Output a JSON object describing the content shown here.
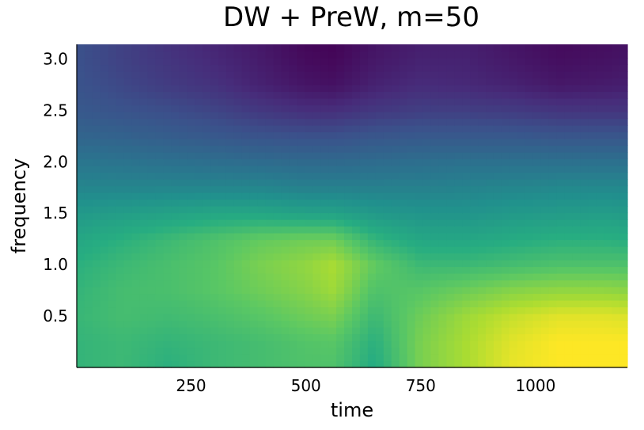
{
  "chart_data": {
    "type": "heatmap",
    "title": "DW + PreW, m=50",
    "xlabel": "time",
    "ylabel": "frequency",
    "xlim": [
      1,
      1200
    ],
    "ylim": [
      0,
      3.1416
    ],
    "xticks": [
      250,
      500,
      750,
      1000
    ],
    "xtick_labels": [
      "250",
      "500",
      "750",
      "1000"
    ],
    "yticks": [
      0.5,
      1.0,
      1.5,
      2.0,
      2.5,
      3.0
    ],
    "ytick_labels": [
      "0.5",
      "1.0",
      "1.5",
      "2.0",
      "2.5",
      "3.0"
    ],
    "colormap": "viridis",
    "colorbar": false,
    "grid": false,
    "x": [
      1,
      100,
      200,
      300,
      400,
      500,
      560,
      650,
      750,
      850,
      950,
      1050,
      1150,
      1200
    ],
    "y": [
      0.0,
      0.25,
      0.5,
      0.75,
      1.0,
      1.25,
      1.5,
      1.75,
      2.0,
      2.25,
      2.5,
      2.75,
      3.0,
      3.1416
    ],
    "z": [
      [
        0.66,
        0.68,
        0.64,
        0.68,
        0.7,
        0.72,
        0.72,
        0.62,
        0.8,
        0.88,
        0.97,
        1.0,
        1.0,
        1.0
      ],
      [
        0.66,
        0.68,
        0.66,
        0.68,
        0.7,
        0.73,
        0.74,
        0.64,
        0.8,
        0.88,
        0.96,
        1.0,
        1.0,
        1.0
      ],
      [
        0.67,
        0.7,
        0.69,
        0.71,
        0.74,
        0.78,
        0.8,
        0.68,
        0.78,
        0.86,
        0.92,
        0.96,
        0.96,
        0.95
      ],
      [
        0.66,
        0.7,
        0.71,
        0.74,
        0.78,
        0.82,
        0.86,
        0.72,
        0.74,
        0.78,
        0.82,
        0.84,
        0.84,
        0.83
      ],
      [
        0.64,
        0.68,
        0.71,
        0.74,
        0.8,
        0.84,
        0.88,
        0.76,
        0.68,
        0.68,
        0.7,
        0.72,
        0.72,
        0.72
      ],
      [
        0.6,
        0.64,
        0.68,
        0.72,
        0.76,
        0.78,
        0.78,
        0.66,
        0.6,
        0.6,
        0.62,
        0.64,
        0.64,
        0.63
      ],
      [
        0.54,
        0.56,
        0.58,
        0.6,
        0.6,
        0.58,
        0.58,
        0.54,
        0.52,
        0.52,
        0.54,
        0.55,
        0.56,
        0.55
      ],
      [
        0.46,
        0.46,
        0.46,
        0.46,
        0.46,
        0.44,
        0.44,
        0.44,
        0.44,
        0.45,
        0.46,
        0.47,
        0.47,
        0.47
      ],
      [
        0.4,
        0.39,
        0.38,
        0.37,
        0.36,
        0.35,
        0.35,
        0.36,
        0.37,
        0.38,
        0.38,
        0.38,
        0.38,
        0.38
      ],
      [
        0.33,
        0.32,
        0.3,
        0.28,
        0.26,
        0.25,
        0.25,
        0.27,
        0.28,
        0.28,
        0.28,
        0.27,
        0.27,
        0.27
      ],
      [
        0.28,
        0.26,
        0.24,
        0.21,
        0.17,
        0.14,
        0.14,
        0.17,
        0.19,
        0.19,
        0.18,
        0.16,
        0.16,
        0.16
      ],
      [
        0.26,
        0.22,
        0.18,
        0.15,
        0.1,
        0.06,
        0.05,
        0.1,
        0.13,
        0.12,
        0.1,
        0.07,
        0.08,
        0.09
      ],
      [
        0.25,
        0.2,
        0.16,
        0.12,
        0.08,
        0.03,
        0.02,
        0.07,
        0.1,
        0.1,
        0.07,
        0.04,
        0.05,
        0.06
      ],
      [
        0.25,
        0.2,
        0.15,
        0.11,
        0.07,
        0.02,
        0.01,
        0.06,
        0.09,
        0.09,
        0.06,
        0.03,
        0.04,
        0.05
      ]
    ]
  }
}
